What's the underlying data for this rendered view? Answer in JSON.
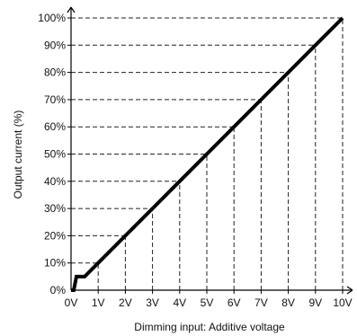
{
  "chart_data": {
    "type": "line",
    "xlabel": "Dimming input: Additive voltage",
    "ylabel": "Output current (%)",
    "x_ticks": [
      "0V",
      "1V",
      "2V",
      "3V",
      "4V",
      "5V",
      "6V",
      "7V",
      "8V",
      "9V",
      "10V"
    ],
    "y_ticks": [
      "0%",
      "10%",
      "20%",
      "30%",
      "40%",
      "50%",
      "60%",
      "70%",
      "80%",
      "90%",
      "100%"
    ],
    "xlim": [
      0,
      10
    ],
    "ylim": [
      0,
      100
    ],
    "grid": "dashed",
    "series": [
      {
        "x": [
          0,
          0.1,
          0.2,
          0.3,
          0.5,
          1,
          2,
          3,
          4,
          5,
          6,
          7,
          8,
          9,
          10
        ],
        "y": [
          0,
          0,
          5,
          5,
          5,
          10,
          20,
          30,
          40,
          50,
          60,
          70,
          80,
          90,
          100
        ]
      }
    ]
  }
}
